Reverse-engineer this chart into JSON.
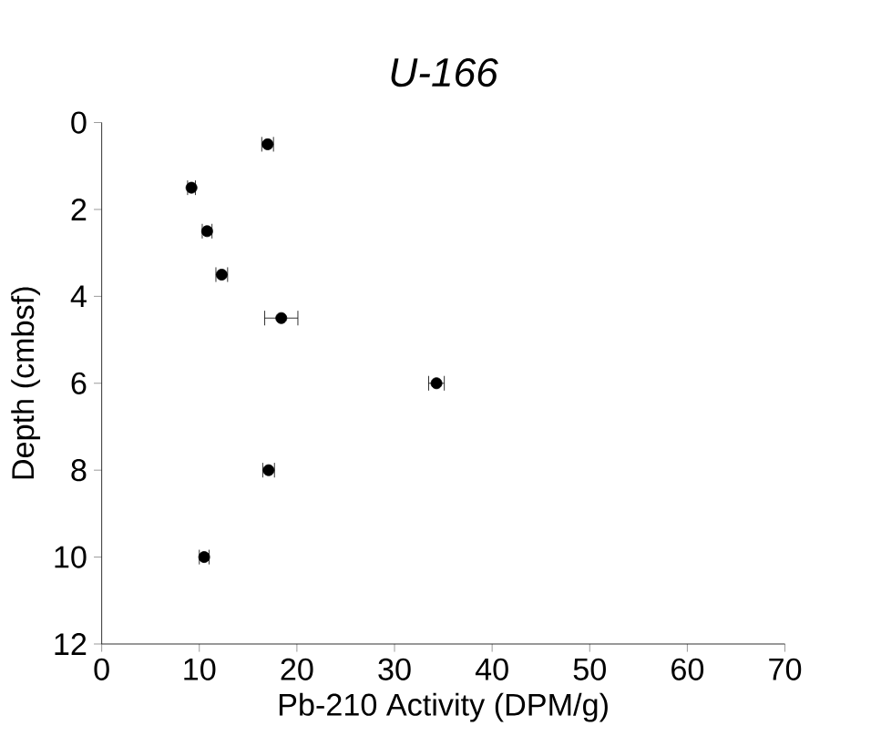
{
  "chart_data": {
    "type": "scatter",
    "title": "U-166",
    "xlabel": "Pb-210 Activity (DPM/g)",
    "ylabel": "Depth (cmbsf)",
    "x": [
      17.0,
      9.2,
      10.8,
      12.3,
      18.4,
      34.3,
      17.1,
      10.5
    ],
    "values": [
      0.5,
      1.5,
      2.5,
      3.5,
      4.5,
      6,
      8,
      10
    ],
    "xerrors": [
      0.6,
      0.4,
      0.5,
      0.6,
      1.7,
      0.8,
      0.6,
      0.5
    ],
    "color": "#000000",
    "marker": "circle",
    "xlim": [
      0,
      70
    ],
    "xticks": [
      0,
      10,
      20,
      30,
      40,
      50,
      60,
      70
    ],
    "ylim": [
      12,
      0
    ],
    "yticks": [
      0,
      2,
      4,
      6,
      8,
      10,
      12
    ]
  }
}
